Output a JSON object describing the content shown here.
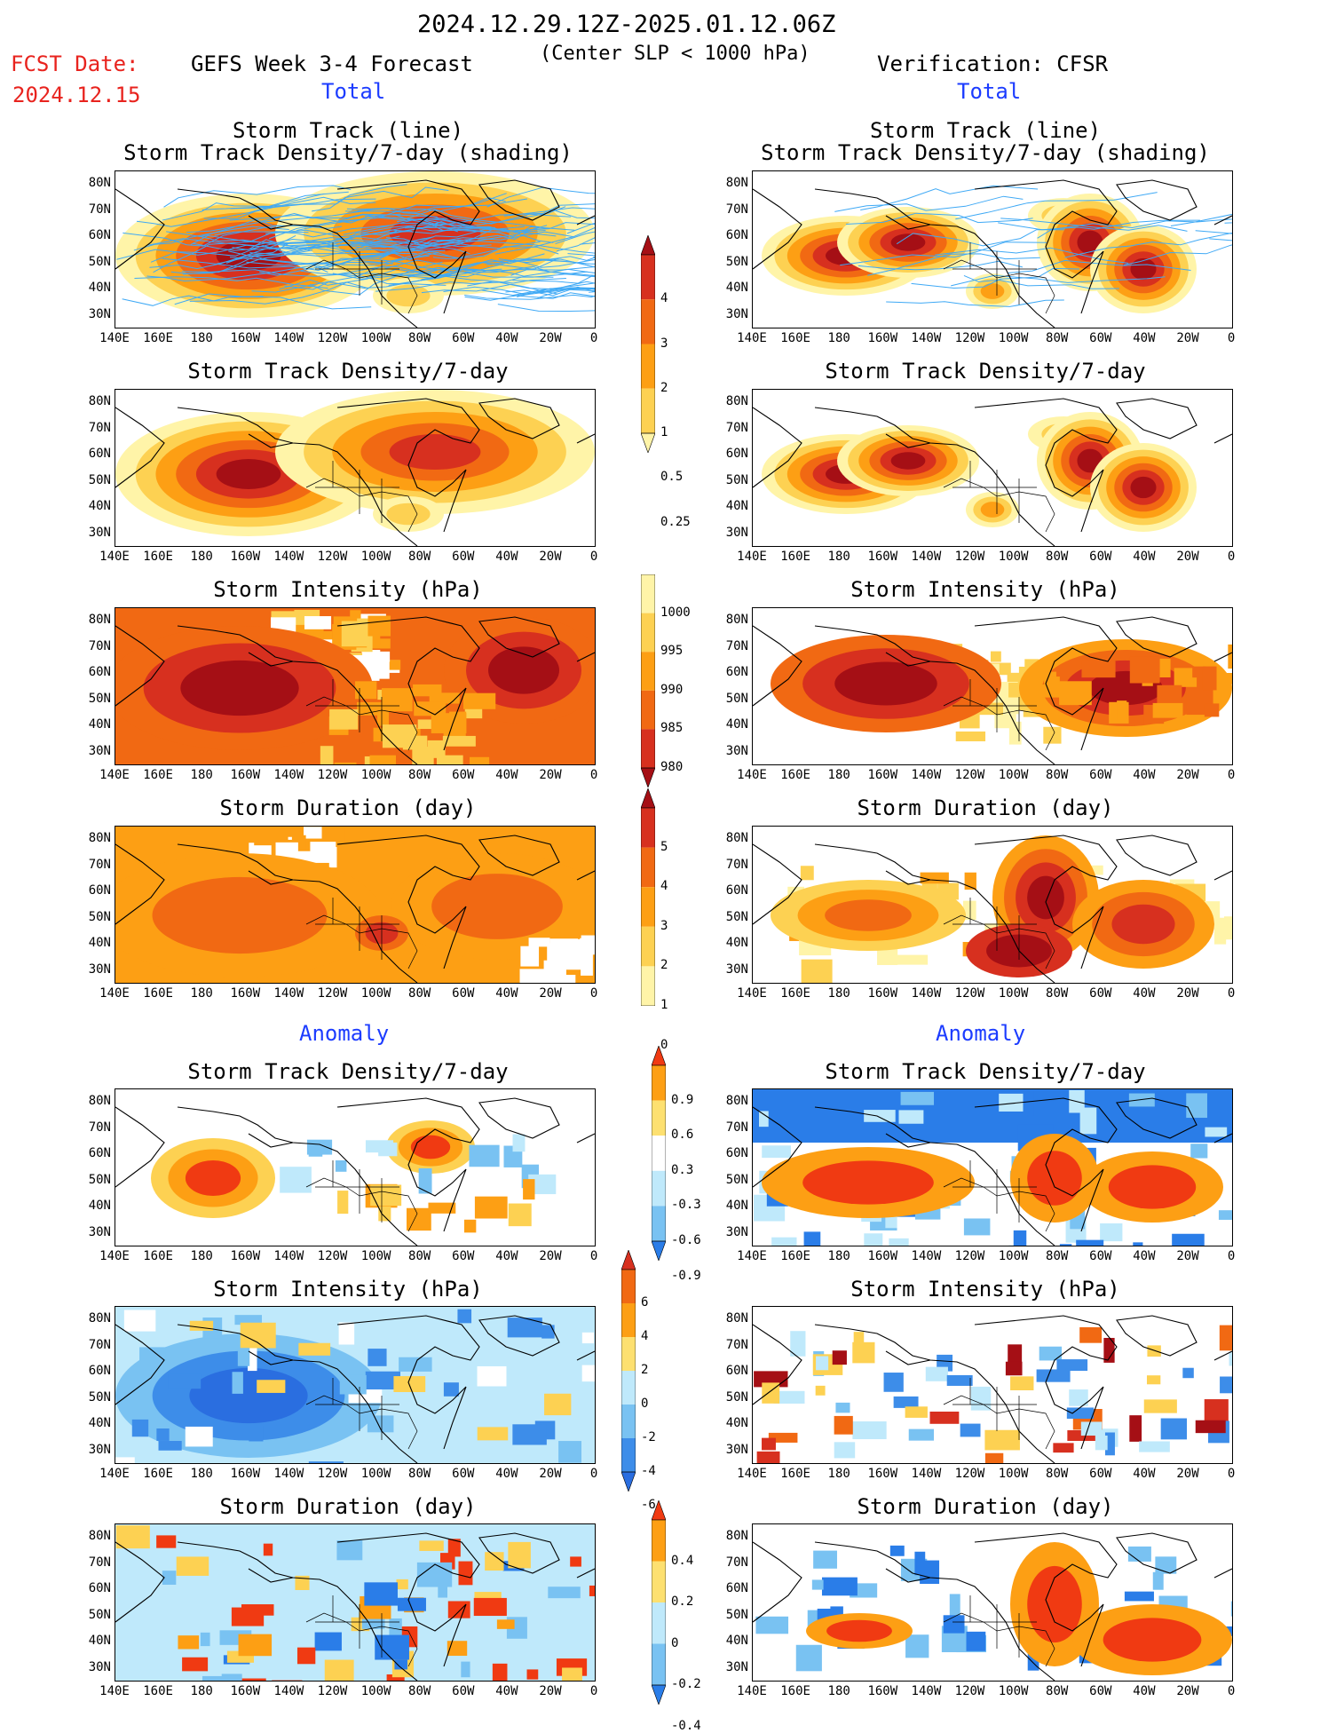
{
  "header": {
    "date_range": "2024.12.29.12Z-2025.01.12.06Z",
    "fcst_label": "FCST Date:",
    "fcst_date": "2024.12.15",
    "model_title": "GEFS Week 3-4 Forecast",
    "criteria": "(Center SLP < 1000 hPa)",
    "verification": "Verification: CFSR"
  },
  "sections": {
    "total_left": "Total",
    "total_right": "Total",
    "anomaly_left": "Anomaly",
    "anomaly_right": "Anomaly"
  },
  "panels": {
    "track_title_1": "Storm Track (line)",
    "track_title_2": "Storm Track Density/7-day (shading)",
    "density": "Storm Track Density/7-day",
    "intensity": "Storm Intensity (hPa)",
    "duration": "Storm Duration (day)"
  },
  "axes": {
    "lat_ticks": [
      "80N",
      "70N",
      "60N",
      "50N",
      "40N",
      "30N"
    ],
    "lon_ticks": [
      "140E",
      "160E",
      "180",
      "160W",
      "140W",
      "120W",
      "100W",
      "80W",
      "60W",
      "40W",
      "20W",
      "0"
    ]
  },
  "colorbars": {
    "density_total": {
      "labels": [
        "4",
        "3",
        "2",
        "1",
        "0.5",
        "0.25"
      ],
      "colors": [
        "#a50f15",
        "#d7301f",
        "#f16913",
        "#fd9f14",
        "#fdd152",
        "#fff4a8"
      ]
    },
    "intensity_total": {
      "labels": [
        "1000",
        "995",
        "990",
        "985",
        "980"
      ],
      "colors": [
        "#fff4a8",
        "#fdd152",
        "#fd9f14",
        "#f16913",
        "#d7301f",
        "#a50f15"
      ]
    },
    "duration_total": {
      "labels": [
        "5",
        "4",
        "3",
        "2",
        "1",
        "0"
      ],
      "colors": [
        "#a50f15",
        "#d7301f",
        "#f16913",
        "#fd9f14",
        "#fdd152",
        "#fff4a8"
      ]
    },
    "density_anom": {
      "labels": [
        "0.9",
        "0.6",
        "0.3",
        "-0.3",
        "-0.6",
        "-0.9"
      ],
      "colors": [
        "#f03a12",
        "#fd9f14",
        "#fde070",
        "#ffffff",
        "#bfe9fb",
        "#79c2f2",
        "#2a7de8"
      ]
    },
    "intensity_anom": {
      "labels": [
        "6",
        "4",
        "2",
        "0",
        "-2",
        "-4",
        "-6"
      ],
      "colors": [
        "#d7301f",
        "#f16913",
        "#fd9f14",
        "#fde070",
        "#bfe9fb",
        "#79c2f2",
        "#3d8de9",
        "#2a6ee0"
      ]
    },
    "duration_anom": {
      "labels": [
        "0.4",
        "0.2",
        "0",
        "-0.2",
        "-0.4"
      ],
      "colors": [
        "#f03a12",
        "#fd9f14",
        "#fde070",
        "#bfe9fb",
        "#79c2f2",
        "#2a7de8"
      ]
    }
  },
  "colors": {
    "dark_red": "#a50f15",
    "red": "#d7301f",
    "orange": "#f16913",
    "amber": "#fd9f14",
    "yellow": "#fdd152",
    "pale": "#fff4a8",
    "light_blue": "#bfe9fb",
    "mid_blue": "#79c2f2",
    "deep_blue": "#2a7de8",
    "track_line": "#3fa9f5"
  }
}
